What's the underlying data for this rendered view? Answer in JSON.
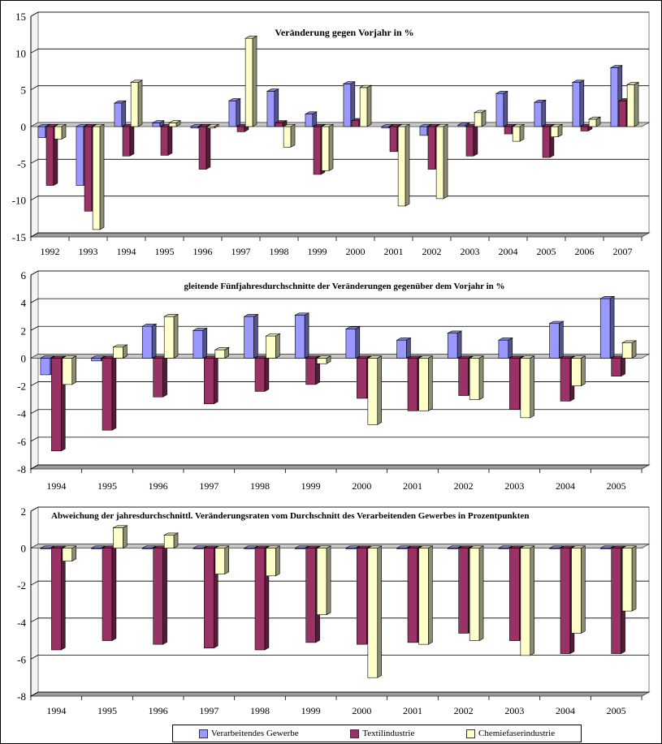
{
  "colors": {
    "verarbeitendes": "#9999ff",
    "textil": "#993366",
    "chemiefaser": "#ffffcc"
  },
  "legend": {
    "items": [
      {
        "label": "Verarbeitendes Gewerbe",
        "color": "#9999ff"
      },
      {
        "label": "Textilindustrie",
        "color": "#993366"
      },
      {
        "label": "Chemiefaserindustrie",
        "color": "#ffffcc"
      }
    ]
  },
  "chart_data": [
    {
      "type": "bar",
      "title": "Veränderung gegen Vorjahr in %",
      "categories": [
        "1992",
        "1993",
        "1994",
        "1995",
        "1996",
        "1997",
        "1998",
        "1999",
        "2000",
        "2001",
        "2002",
        "2003",
        "2004",
        "2005",
        "2006",
        "2007"
      ],
      "ylim": [
        -15,
        15
      ],
      "yticks": [
        -15,
        -10,
        -5,
        0,
        5,
        10,
        15
      ],
      "grid": true,
      "series": [
        {
          "name": "Verarbeitendes Gewerbe",
          "values": [
            -1.5,
            -8.0,
            3.2,
            0.5,
            -0.2,
            3.5,
            4.8,
            1.7,
            5.8,
            -0.2,
            -1.2,
            0.2,
            4.5,
            3.3,
            6.0,
            8.0
          ]
        },
        {
          "name": "Textilindustrie",
          "values": [
            -8.0,
            -11.5,
            -4.0,
            -3.9,
            -5.8,
            -0.7,
            0.5,
            -6.5,
            0.8,
            -3.4,
            -5.8,
            -4.0,
            -1.0,
            -4.2,
            -0.6,
            3.5
          ]
        },
        {
          "name": "Chemiefaserindustrie",
          "values": [
            -1.7,
            -14.0,
            6.0,
            0.5,
            -0.2,
            12.0,
            -2.8,
            -6.0,
            5.3,
            -10.8,
            -9.8,
            1.9,
            -2.0,
            -1.4,
            1.0,
            5.7
          ]
        }
      ]
    },
    {
      "type": "bar",
      "title": "gleitende Fünfjahresdurchschnitte der Veränderungen gegenüber dem Vorjahr in %",
      "categories": [
        "1994",
        "1995",
        "1996",
        "1997",
        "1998",
        "1999",
        "2000",
        "2001",
        "2002",
        "2003",
        "2004",
        "2005"
      ],
      "ylim": [
        -8,
        6
      ],
      "yticks": [
        -8,
        -6,
        -4,
        -2,
        0,
        2,
        4,
        6
      ],
      "grid": true,
      "series": [
        {
          "name": "Verarbeitendes Gewerbe",
          "values": [
            -1.2,
            -0.2,
            2.3,
            2.0,
            3.0,
            3.1,
            2.1,
            1.3,
            1.8,
            1.3,
            2.5,
            4.3
          ]
        },
        {
          "name": "Textilindustrie",
          "values": [
            -6.7,
            -5.2,
            -2.8,
            -3.3,
            -2.4,
            -1.9,
            -2.9,
            -3.8,
            -2.7,
            -3.7,
            -3.1,
            -1.3
          ]
        },
        {
          "name": "Chemiefaserindustrie",
          "values": [
            -1.9,
            0.8,
            3.0,
            0.6,
            1.6,
            -0.4,
            -4.8,
            -3.8,
            -3.0,
            -4.3,
            -2.0,
            1.1
          ]
        }
      ]
    },
    {
      "type": "bar",
      "title": "Abweichung der jahresdurchschnittl. Veränderungsraten vom Durchschnitt des Verarbeitenden Gewerbes in Prozentpunkten",
      "categories": [
        "1994",
        "1995",
        "1996",
        "1997",
        "1998",
        "1999",
        "2000",
        "2001",
        "2002",
        "2003",
        "2004",
        "2005"
      ],
      "ylim": [
        -8,
        2
      ],
      "yticks": [
        -8,
        -6,
        -4,
        -2,
        0,
        2
      ],
      "grid": true,
      "series": [
        {
          "name": "Verarbeitendes Gewerbe",
          "values": [
            0,
            0,
            0,
            0,
            0,
            0,
            0,
            0,
            0,
            0,
            0,
            0
          ]
        },
        {
          "name": "Textilindustrie",
          "values": [
            -5.5,
            -5.0,
            -5.2,
            -5.4,
            -5.5,
            -5.1,
            -5.2,
            -5.1,
            -4.6,
            -5.0,
            -5.7,
            -5.7
          ]
        },
        {
          "name": "Chemiefaserindustrie",
          "values": [
            -0.7,
            1.1,
            0.7,
            -1.4,
            -1.5,
            -3.6,
            -7.0,
            -5.2,
            -5.0,
            -5.8,
            -4.6,
            -3.4
          ]
        }
      ]
    }
  ]
}
